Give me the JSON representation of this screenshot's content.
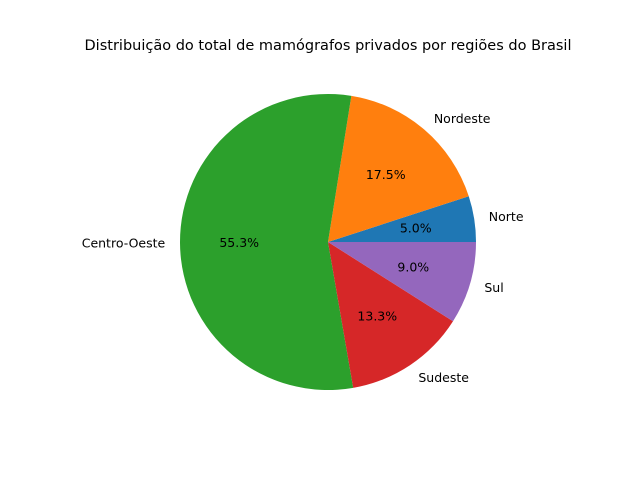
{
  "chart_data": {
    "type": "pie",
    "title": "Distribuição do total de mamógrafos privados por regiões do Brasil",
    "start_angle_deg": 0,
    "direction": "counterclockwise",
    "slices": [
      {
        "label": "Norte",
        "value": 5.0,
        "pct_label": "5.0%",
        "color": "#1f77b4"
      },
      {
        "label": "Nordeste",
        "value": 17.5,
        "pct_label": "17.5%",
        "color": "#ff7f0e"
      },
      {
        "label": "Centro-Oeste",
        "value": 55.3,
        "pct_label": "55.3%",
        "color": "#2ca02c"
      },
      {
        "label": "Sudeste",
        "value": 13.3,
        "pct_label": "13.3%",
        "color": "#d62728"
      },
      {
        "label": "Sul",
        "value": 9.0,
        "pct_label": "9.0%",
        "color": "#9467bd"
      }
    ]
  }
}
